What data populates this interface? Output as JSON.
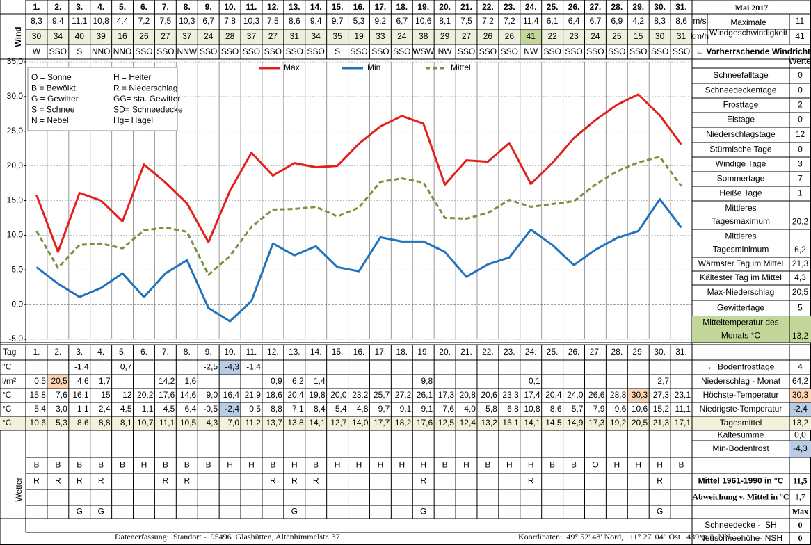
{
  "title": "Mai 2017",
  "days": [
    "1.",
    "2.",
    "3.",
    "4.",
    "5.",
    "6.",
    "7.",
    "8.",
    "9.",
    "10.",
    "11.",
    "12.",
    "13.",
    "14.",
    "15.",
    "16.",
    "17.",
    "18.",
    "19.",
    "20.",
    "21.",
    "22.",
    "23.",
    "24.",
    "25.",
    "26.",
    "27.",
    "28.",
    "29.",
    "30.",
    "31."
  ],
  "wind": {
    "label": "Wind",
    "unit_ms": "m/s",
    "unit_kmh": "km/h",
    "ms": [
      "8,3",
      "9,4",
      "11,1",
      "10,8",
      "4,4",
      "7,2",
      "7,5",
      "10,3",
      "6,7",
      "7,8",
      "10,3",
      "7,5",
      "8,6",
      "9,4",
      "9,7",
      "5,3",
      "9,2",
      "6,7",
      "10,6",
      "8,1",
      "7,5",
      "7,2",
      "7,2",
      "11,4",
      "6,1",
      "6,4",
      "6,7",
      "6,9",
      "4,2",
      "8,3",
      "8,6"
    ],
    "kmh": [
      "30",
      "34",
      "40",
      "39",
      "16",
      "26",
      "27",
      "37",
      "24",
      "28",
      "37",
      "27",
      "31",
      "34",
      "35",
      "19",
      "33",
      "24",
      "38",
      "29",
      "27",
      "26",
      "26",
      "41",
      "22",
      "23",
      "24",
      "25",
      "15",
      "30",
      "31"
    ],
    "direction": [
      "W",
      "SSO",
      "S",
      "NNO",
      "NNO",
      "SSO",
      "SSO",
      "NNW",
      "SSO",
      "SSO",
      "SSO",
      "SSO",
      "SSO",
      "SSO",
      "S",
      "SSO",
      "SSO",
      "SSO",
      "WSW",
      "NW",
      "SSO",
      "SSO",
      "SSO",
      "NW",
      "SSO",
      "SSO",
      "SSO",
      "SSO",
      "SSO",
      "SSO",
      "SSO"
    ],
    "kmh_highlight": [
      23
    ],
    "highlight_color": "#c4d79b",
    "kmh_fill": "#eef0dd",
    "max_label": [
      "Maximale",
      "Windgeschwindigkeit"
    ],
    "max_ms": "11",
    "max_kmh": "41",
    "direction_label": "← Vorherrschende Windrichtung"
  },
  "chart_data": {
    "type": "line",
    "ylim": [
      -5,
      35
    ],
    "yticks": [
      {
        "value": -5,
        "label": "-5,0"
      },
      {
        "value": 0,
        "label": "0,0"
      },
      {
        "value": 5,
        "label": "5,0"
      },
      {
        "value": 10,
        "label": "10,0"
      },
      {
        "value": 15,
        "label": "15,0"
      },
      {
        "value": 20,
        "label": "20,0"
      },
      {
        "value": 25,
        "label": "25,0"
      },
      {
        "value": 30,
        "label": "30,0"
      },
      {
        "value": 35,
        "label": "35,0"
      }
    ],
    "grid": true,
    "series": [
      {
        "name": "Max",
        "color": "#e3201b",
        "dashed": false,
        "values": [
          15.8,
          7.6,
          16.1,
          15,
          12,
          20.2,
          17.6,
          14.6,
          9.0,
          16.4,
          21.9,
          18.6,
          20.4,
          19.8,
          20.0,
          23.2,
          25.7,
          27.2,
          26.1,
          17.3,
          20.8,
          20.6,
          23.3,
          17.4,
          20.4,
          24.0,
          26.6,
          28.8,
          30.3,
          27.3,
          23.1
        ]
      },
      {
        "name": "Min",
        "color": "#1f72bb",
        "dashed": false,
        "values": [
          5.4,
          3.0,
          1.1,
          2.4,
          4.5,
          1.1,
          4.5,
          6.4,
          -0.5,
          -2.4,
          0.5,
          8.8,
          7.1,
          8.4,
          5.4,
          4.8,
          9.7,
          9.1,
          9.1,
          7.6,
          4.0,
          5.8,
          6.8,
          10.8,
          8.6,
          5.7,
          7.9,
          9.6,
          10.6,
          15.2,
          11.1
        ]
      },
      {
        "name": "Mittel",
        "color": "#76923c",
        "dashed": true,
        "values": [
          10.6,
          5.3,
          8.6,
          8.8,
          8.1,
          10.7,
          11.1,
          10.5,
          4.3,
          7.0,
          11.2,
          13.7,
          13.8,
          14.1,
          12.7,
          14.0,
          17.7,
          18.2,
          17.6,
          12.5,
          12.4,
          13.2,
          15.1,
          14.1,
          14.5,
          14.9,
          17.3,
          19.2,
          20.5,
          21.3,
          17.1
        ]
      }
    ],
    "legend_key": [
      [
        "O = Sonne",
        "H = Heiter"
      ],
      [
        "B = Bewölkt",
        "R = Niederschlag"
      ],
      [
        "G = Gewitter",
        "GG= sta. Gewitter"
      ],
      [
        "S = Schnee",
        "SD= Schneedecke"
      ],
      [
        "N = Nebel",
        "Hg= Hagel"
      ]
    ]
  },
  "stats": {
    "header": "Werte",
    "rows": [
      {
        "lines": [
          "Schneefalltage"
        ],
        "value": "0"
      },
      {
        "lines": [
          "Schneedeckentage"
        ],
        "value": "0"
      },
      {
        "lines": [
          "Frosttage"
        ],
        "value": "2"
      },
      {
        "lines": [
          "Eistage"
        ],
        "value": "0"
      },
      {
        "lines": [
          "Niederschlagstage"
        ],
        "value": "12"
      },
      {
        "lines": [
          "Stürmische Tage"
        ],
        "value": "0"
      },
      {
        "lines": [
          "Windige Tage"
        ],
        "value": "3"
      },
      {
        "lines": [
          "Sommertage"
        ],
        "value": "7"
      },
      {
        "lines": [
          "Heiße Tage"
        ],
        "value": "1"
      },
      {
        "lines": [
          "Mittleres",
          "Tagesmaximum"
        ],
        "value": "20,2"
      },
      {
        "lines": [
          "Mittleres",
          "Tagesminimum"
        ],
        "value": "6,2"
      },
      {
        "lines": [
          "Wärmster Tag im Mittel"
        ],
        "value": "21,3"
      },
      {
        "lines": [
          "Kältester Tag im Mittel"
        ],
        "value": "4,3"
      },
      {
        "lines": [
          "Max-Niederschlag"
        ],
        "value": "20,5"
      },
      {
        "lines": [
          "Gewittertage"
        ],
        "value": "5"
      },
      {
        "lines": [
          "Mitteltemperatur des",
          "Monats °C"
        ],
        "value": "13,2",
        "color": "#c4d79b"
      }
    ]
  },
  "table": {
    "day_label": "Tag",
    "rows": [
      {
        "unit": "°C",
        "values": [
          null,
          null,
          "-1,4",
          null,
          "0,7",
          null,
          null,
          null,
          "-2,5",
          "-4,3",
          "-1,4",
          null,
          null,
          null,
          null,
          null,
          null,
          null,
          null,
          null,
          null,
          null,
          null,
          null,
          null,
          null,
          null,
          null,
          null,
          null,
          null
        ],
        "label": "← Bodenfrosttage",
        "total": "4",
        "highlight": [
          {
            "index": 9,
            "color": "#b8cce4"
          }
        ]
      },
      {
        "unit": "l/m²",
        "values": [
          "0,5",
          "20,5",
          "4,6",
          "1,7",
          null,
          null,
          "14,2",
          "1,6",
          null,
          null,
          null,
          "0,9",
          "6,2",
          "1,4",
          null,
          null,
          null,
          null,
          "9,8",
          null,
          null,
          null,
          null,
          "0,1",
          null,
          null,
          null,
          null,
          null,
          "2,7",
          null
        ],
        "label": "Niederschlag - Monat",
        "total": "64,2",
        "highlight": [
          {
            "index": 1,
            "color": "#fcd5b4"
          }
        ]
      },
      {
        "unit": "°C",
        "values": [
          "15,8",
          "7,6",
          "16,1",
          "15",
          "12",
          "20,2",
          "17,6",
          "14,6",
          "9,0",
          "16,4",
          "21,9",
          "18,6",
          "20,4",
          "19,8",
          "20,0",
          "23,2",
          "25,7",
          "27,2",
          "26,1",
          "17,3",
          "20,8",
          "20,6",
          "23,3",
          "17,4",
          "20,4",
          "24,0",
          "26,6",
          "28,8",
          "30,3",
          "27,3",
          "23,1"
        ],
        "label": "Höchste-Temperatur",
        "total": "30,3",
        "total_color": "#fcd5b4",
        "highlight": [
          {
            "index": 28,
            "color": "#fcd5b4"
          }
        ]
      },
      {
        "unit": "°C",
        "values": [
          "5,4",
          "3,0",
          "1,1",
          "2,4",
          "4,5",
          "1,1",
          "4,5",
          "6,4",
          "-0,5",
          "-2,4",
          "0,5",
          "8,8",
          "7,1",
          "8,4",
          "5,4",
          "4,8",
          "9,7",
          "9,1",
          "9,1",
          "7,6",
          "4,0",
          "5,8",
          "6,8",
          "10,8",
          "8,6",
          "5,7",
          "7,9",
          "9,6",
          "10,6",
          "15,2",
          "11,1"
        ],
        "label": "Niedrigste-Temperatur",
        "total": "-2,4",
        "total_color": "#b8cce4",
        "highlight": [
          {
            "index": 9,
            "color": "#b8cce4"
          }
        ]
      },
      {
        "unit": "°C",
        "values": [
          "10,6",
          "5,3",
          "8,6",
          "8,8",
          "8,1",
          "10,7",
          "11,1",
          "10,5",
          "4,3",
          "7,0",
          "11,2",
          "13,7",
          "13,8",
          "14,1",
          "12,7",
          "14,0",
          "17,7",
          "18,2",
          "17,6",
          "12,5",
          "12,4",
          "13,2",
          "15,1",
          "14,1",
          "14,5",
          "14,9",
          "17,3",
          "19,2",
          "20,5",
          "21,3",
          "17,1"
        ],
        "label": "Tagesmittel",
        "total": "13,2",
        "fill": "#f3f0dc",
        "highlight": []
      }
    ]
  },
  "weather": {
    "label": "Wetter",
    "rows": [
      [
        "B",
        "B",
        "B",
        "B",
        "B",
        "H",
        "B",
        "B",
        "B",
        "H",
        "H",
        "B",
        "H",
        "B",
        "H",
        "H",
        "H",
        "H",
        "H",
        "B",
        "H",
        "B",
        "H",
        "H",
        "B",
        "B",
        "O",
        "H",
        "H",
        "H",
        "B"
      ],
      [
        "R",
        "R",
        "R",
        "R",
        null,
        null,
        "R",
        "R",
        null,
        null,
        null,
        "R",
        "R",
        "R",
        null,
        null,
        null,
        null,
        "R",
        null,
        null,
        null,
        null,
        "R",
        null,
        null,
        null,
        null,
        null,
        "R",
        null
      ],
      [
        null,
        null,
        "G",
        "G",
        null,
        null,
        null,
        null,
        null,
        null,
        null,
        null,
        "G",
        null,
        null,
        null,
        null,
        null,
        "G",
        null,
        null,
        null,
        null,
        null,
        null,
        null,
        null,
        null,
        null,
        "G",
        null
      ]
    ]
  },
  "extra": [
    {
      "label": "Kältesumme",
      "value": "0,0"
    },
    {
      "label": "Min-Bodenfrost",
      "value": "-4,3",
      "color": "#b8cce4"
    },
    {
      "label": "Mittel 1961-1990 in °C",
      "value": "11,5",
      "style": "bold"
    },
    {
      "label": "Abweichung v. Mittel in °C",
      "value": "1,7",
      "style": "red"
    },
    {
      "value": "Max",
      "style": "small"
    },
    {
      "label": "Schneedecke -  SH",
      "value": "0",
      "style": "valbold"
    },
    {
      "label": "Neuschneehöhe- NSH",
      "value": "0",
      "style": "valbold"
    }
  ],
  "footer": {
    "left": "Datenerfassung:  Standort -  95496  Glashütten, Altenhimmelstr. 37",
    "right": "Koordinaten:  49° 52' 48' Nord,   11° 27' 04\" Ost   439 m ü. NN"
  }
}
